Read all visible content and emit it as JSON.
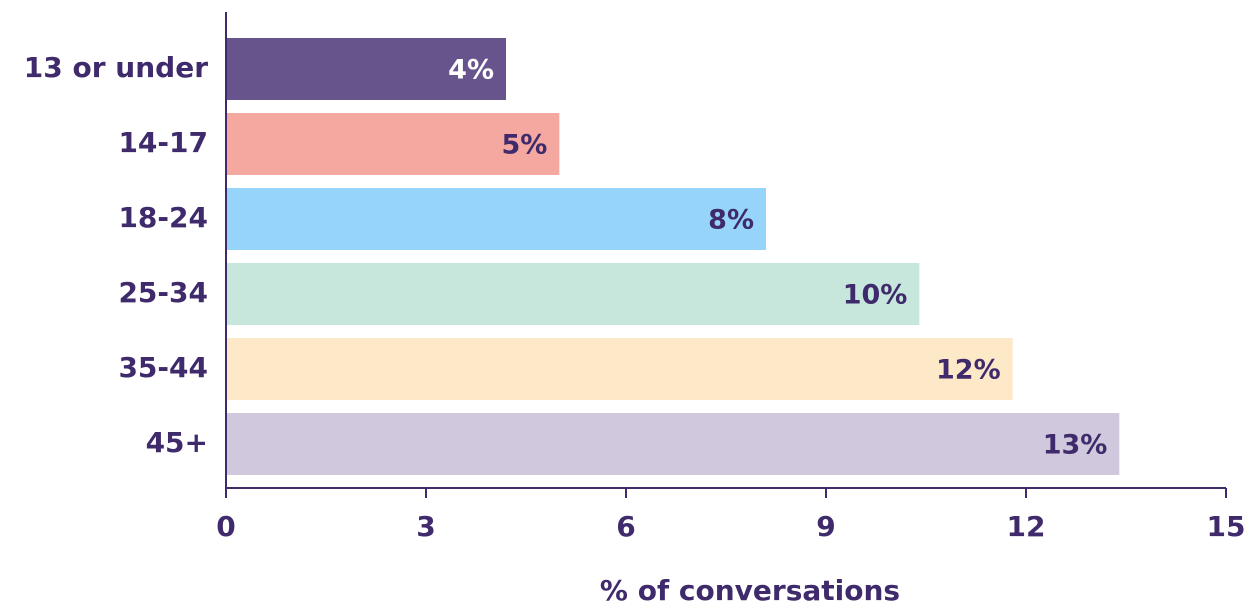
{
  "chart_data": {
    "type": "bar",
    "orientation": "horizontal",
    "categories": [
      "13 or under",
      "14-17",
      "18-24",
      "25-34",
      "35-44",
      "45+"
    ],
    "values": [
      4.2,
      5.0,
      8.1,
      10.4,
      11.8,
      13.4
    ],
    "value_labels": [
      "4%",
      "5%",
      "8%",
      "10%",
      "12%",
      "13%"
    ],
    "colors": [
      "#68548c",
      "#f5a8a0",
      "#97d4fc",
      "#c7e7dd",
      "#fde8c8",
      "#d0c8dc"
    ],
    "label_colors": [
      "#ffffff",
      "#3f2a6b",
      "#3f2a6b",
      "#3f2a6b",
      "#3f2a6b",
      "#3f2a6b"
    ],
    "xlim": [
      0,
      15
    ],
    "xticks": [
      0,
      3,
      6,
      9,
      12,
      15
    ],
    "x_label": "% of conversations",
    "grid": false
  }
}
